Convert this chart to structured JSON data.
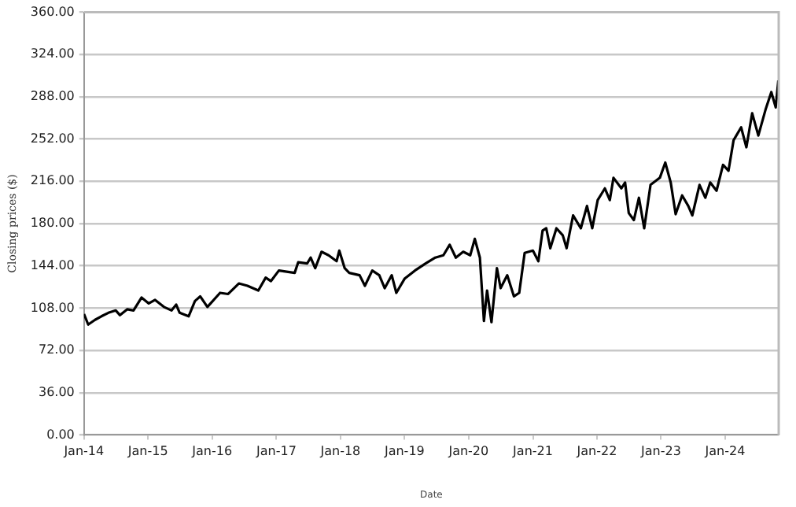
{
  "chart_data": {
    "type": "line",
    "xlabel": "Date",
    "ylabel": "Closing prices ($)",
    "grid": "y",
    "legend": false,
    "marker": "none",
    "line_style": "solid",
    "xlim": [
      "2014-01-01",
      "2024-11-01"
    ],
    "xticks": [
      {
        "value": "2014-01-01",
        "label": "Jan-14"
      },
      {
        "value": "2015-01-01",
        "label": "Jan-15"
      },
      {
        "value": "2016-01-01",
        "label": "Jan-16"
      },
      {
        "value": "2017-01-01",
        "label": "Jan-17"
      },
      {
        "value": "2018-01-01",
        "label": "Jan-18"
      },
      {
        "value": "2019-01-01",
        "label": "Jan-19"
      },
      {
        "value": "2020-01-01",
        "label": "Jan-20"
      },
      {
        "value": "2021-01-01",
        "label": "Jan-21"
      },
      {
        "value": "2022-01-01",
        "label": "Jan-22"
      },
      {
        "value": "2023-01-01",
        "label": "Jan-23"
      },
      {
        "value": "2024-01-01",
        "label": "Jan-24"
      }
    ],
    "ylim": [
      0,
      360
    ],
    "yticks": [
      {
        "value": 0,
        "label": "0.00"
      },
      {
        "value": 36,
        "label": "36.00"
      },
      {
        "value": 72,
        "label": "72.00"
      },
      {
        "value": 108,
        "label": "108.00"
      },
      {
        "value": 144,
        "label": "144.00"
      },
      {
        "value": 180,
        "label": "180.00"
      },
      {
        "value": 216,
        "label": "216.00"
      },
      {
        "value": 252,
        "label": "252.00"
      },
      {
        "value": 288,
        "label": "288.00"
      },
      {
        "value": 324,
        "label": "324.00"
      },
      {
        "value": 360,
        "label": "360.00"
      }
    ],
    "x": [
      "2014-01-01",
      "2014-01-25",
      "2014-03-05",
      "2014-04-10",
      "2014-05-20",
      "2014-07-01",
      "2014-07-25",
      "2014-09-05",
      "2014-10-10",
      "2014-11-25",
      "2015-01-05",
      "2015-02-10",
      "2015-04-01",
      "2015-05-15",
      "2015-06-10",
      "2015-06-30",
      "2015-08-20",
      "2015-09-25",
      "2015-10-25",
      "2015-12-05",
      "2016-02-15",
      "2016-04-01",
      "2016-06-01",
      "2016-07-20",
      "2016-08-20",
      "2016-09-20",
      "2016-11-01",
      "2016-12-01",
      "2017-01-15",
      "2017-03-01",
      "2017-04-15",
      "2017-05-05",
      "2017-06-25",
      "2017-07-15",
      "2017-08-10",
      "2017-09-15",
      "2017-10-25",
      "2017-12-10",
      "2017-12-25",
      "2018-01-25",
      "2018-02-20",
      "2018-04-20",
      "2018-05-20",
      "2018-07-01",
      "2018-08-10",
      "2018-09-10",
      "2018-10-20",
      "2018-11-15",
      "2019-01-01",
      "2019-03-01",
      "2019-05-01",
      "2019-06-25",
      "2019-08-10",
      "2019-09-15",
      "2019-10-20",
      "2019-12-01",
      "2020-01-10",
      "2020-02-05",
      "2020-03-05",
      "2020-03-28",
      "2020-04-15",
      "2020-05-10",
      "2020-06-10",
      "2020-07-01",
      "2020-08-08",
      "2020-09-15",
      "2020-10-15",
      "2020-11-15",
      "2021-01-01",
      "2021-02-01",
      "2021-02-25",
      "2021-03-18",
      "2021-04-10",
      "2021-05-15",
      "2021-06-20",
      "2021-07-12",
      "2021-08-18",
      "2021-10-01",
      "2021-11-05",
      "2021-12-05",
      "2022-01-05",
      "2022-02-15",
      "2022-03-15",
      "2022-04-05",
      "2022-05-20",
      "2022-06-10",
      "2022-07-01",
      "2022-07-30",
      "2022-08-28",
      "2022-09-27",
      "2022-11-02",
      "2022-12-25",
      "2023-01-25",
      "2023-02-25",
      "2023-03-25",
      "2023-05-01",
      "2023-06-05",
      "2023-06-28",
      "2023-08-08",
      "2023-09-10",
      "2023-10-08",
      "2023-11-13",
      "2023-12-20",
      "2024-01-20",
      "2024-02-18",
      "2024-04-01",
      "2024-05-01",
      "2024-06-03",
      "2024-07-08",
      "2024-08-18",
      "2024-09-20",
      "2024-10-15",
      "2024-10-30"
    ],
    "series": [
      {
        "color": "#000000",
        "values": [
          103,
          94,
          98,
          101,
          104,
          106,
          102,
          107,
          106,
          117,
          112,
          115,
          109,
          106,
          111,
          104,
          101,
          114,
          118,
          109,
          121,
          120,
          129,
          127,
          125,
          123,
          134,
          131,
          140,
          139,
          138,
          147,
          146,
          151,
          142,
          156,
          153,
          148,
          157,
          142,
          138,
          136,
          127,
          140,
          136,
          125,
          136,
          121,
          133,
          140,
          146,
          151,
          153,
          162,
          151,
          156,
          153,
          167,
          151,
          97,
          123,
          96,
          142,
          125,
          136,
          118,
          121,
          155,
          157,
          148,
          174,
          176,
          159,
          176,
          170,
          159,
          187,
          176,
          195,
          176,
          200,
          210,
          200,
          219,
          210,
          215,
          189,
          183,
          202,
          176,
          213,
          219,
          232,
          215,
          188,
          204,
          195,
          187,
          213,
          202,
          215,
          208,
          230,
          225,
          251,
          262,
          245,
          274,
          255,
          277,
          292,
          279,
          302
        ]
      }
    ]
  }
}
